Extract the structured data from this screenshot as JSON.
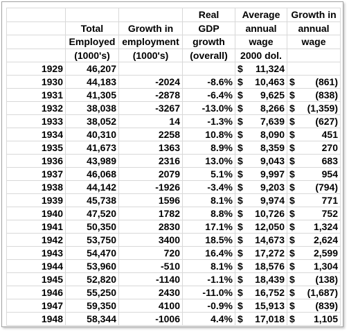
{
  "table": {
    "header": [
      [
        null,
        null,
        null,
        "Real",
        "Average",
        "Growth in"
      ],
      [
        null,
        "Total",
        "Growth in",
        "GDP",
        "annual",
        "annual"
      ],
      [
        null,
        "Employed",
        "employment",
        "growth",
        "wage",
        "wage"
      ],
      [
        null,
        "(1000's)",
        "(1000's)",
        "(overall)",
        "2000 dol.",
        null
      ]
    ],
    "rows": [
      [
        "1929",
        "46,207",
        null,
        null,
        "$",
        "11,324",
        null,
        null
      ],
      [
        "1930",
        "44,183",
        "-2024",
        "-8.6%",
        "$",
        "10,463",
        "$",
        "(861)"
      ],
      [
        "1931",
        "41,305",
        "-2878",
        "-6.4%",
        "$",
        "9,625",
        "$",
        "(838)"
      ],
      [
        "1932",
        "38,038",
        "-3267",
        "-13.0%",
        "$",
        "8,266",
        "$",
        "(1,359)"
      ],
      [
        "1933",
        "38,052",
        "14",
        "-1.3%",
        "$",
        "7,639",
        "$",
        "(627)"
      ],
      [
        "1934",
        "40,310",
        "2258",
        "10.8%",
        "$",
        "8,090",
        "$",
        "451"
      ],
      [
        "1935",
        "41,673",
        "1363",
        "8.9%",
        "$",
        "8,359",
        "$",
        "270"
      ],
      [
        "1936",
        "43,989",
        "2316",
        "13.0%",
        "$",
        "9,043",
        "$",
        "683"
      ],
      [
        "1937",
        "46,068",
        "2079",
        "5.1%",
        "$",
        "9,997",
        "$",
        "954"
      ],
      [
        "1938",
        "44,142",
        "-1926",
        "-3.4%",
        "$",
        "9,203",
        "$",
        "(794)"
      ],
      [
        "1939",
        "45,738",
        "1596",
        "8.1%",
        "$",
        "9,974",
        "$",
        "771"
      ],
      [
        "1940",
        "47,520",
        "1782",
        "8.8%",
        "$",
        "10,726",
        "$",
        "752"
      ],
      [
        "1941",
        "50,350",
        "2830",
        "17.1%",
        "$",
        "12,050",
        "$",
        "1,324"
      ],
      [
        "1942",
        "53,750",
        "3400",
        "18.5%",
        "$",
        "14,673",
        "$",
        "2,624"
      ],
      [
        "1943",
        "54,470",
        "720",
        "16.4%",
        "$",
        "17,272",
        "$",
        "2,599"
      ],
      [
        "1944",
        "53,960",
        "-510",
        "8.1%",
        "$",
        "18,576",
        "$",
        "1,304"
      ],
      [
        "1945",
        "52,820",
        "-1140",
        "-1.1%",
        "$",
        "18,439",
        "$",
        "(138)"
      ],
      [
        "1946",
        "55,250",
        "2430",
        "-11.0%",
        "$",
        "16,752",
        "$",
        "(1,687)"
      ],
      [
        "1947",
        "59,350",
        "4100",
        "-0.9%",
        "$",
        "15,913",
        "$",
        "(839)"
      ],
      [
        "1948",
        "58,344",
        "-1006",
        "4.4%",
        "$",
        "17,018",
        "$",
        "1,105"
      ]
    ]
  }
}
